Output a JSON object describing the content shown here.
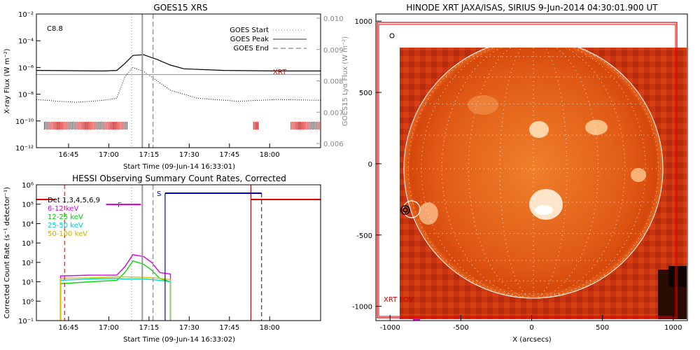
{
  "chart_data": [
    {
      "type": "line",
      "title": "GOES15 XRS",
      "xlabel": "Start Time (09-Jun-14 16:33:01)",
      "ylabel": "X-ray Flux (W m⁻²)",
      "ylabel_right": "GOES15 Lyα Flux (W m⁻²)",
      "xticks": [
        "16:45",
        "17:00",
        "17:15",
        "17:30",
        "17:45",
        "18:00"
      ],
      "yticks": [
        "10⁻¹²",
        "10⁻¹⁰",
        "10⁻⁸",
        "10⁻⁶",
        "10⁻⁴",
        "10⁻²"
      ],
      "yticks_right": [
        "0.006",
        "0.007",
        "0.008",
        "0.009",
        "0.010"
      ],
      "flare_class": "C8.8",
      "legend": [
        {
          "name": "GOES Start",
          "style": "dotted"
        },
        {
          "name": "GOES Peak",
          "style": "solid"
        },
        {
          "name": "GOES End",
          "style": "dashed"
        }
      ],
      "xrt_label": "XRT",
      "series": [
        {
          "name": "long channel",
          "color": "#000000",
          "points": [
            [
              0,
              6e-07
            ],
            [
              10,
              5.8e-07
            ],
            [
              25,
              5.5e-07
            ],
            [
              30,
              6e-07
            ],
            [
              33,
              2e-06
            ],
            [
              36,
              8e-06
            ],
            [
              40,
              9e-06
            ],
            [
              45,
              4e-06
            ],
            [
              50,
              1.5e-06
            ],
            [
              55,
              8e-07
            ],
            [
              70,
              6e-07
            ],
            [
              90,
              5.5e-07
            ],
            [
              106,
              5.5e-07
            ]
          ]
        },
        {
          "name": "short channel",
          "color": "#000000",
          "style": "dotted",
          "points": [
            [
              0,
              4e-09
            ],
            [
              8,
              3e-09
            ],
            [
              15,
              2.5e-09
            ],
            [
              25,
              3.5e-09
            ],
            [
              30,
              5e-09
            ],
            [
              33,
              2e-07
            ],
            [
              36,
              1e-06
            ],
            [
              40,
              5e-07
            ],
            [
              45,
              1e-07
            ],
            [
              50,
              2e-08
            ],
            [
              60,
              5e-09
            ],
            [
              75,
              3e-09
            ],
            [
              90,
              4e-09
            ],
            [
              106,
              3.5e-09
            ]
          ]
        },
        {
          "name": "Lyα",
          "color": "#999999",
          "points": [
            [
              0,
              0.0082
            ],
            [
              106,
              0.0082
            ]
          ]
        }
      ]
    },
    {
      "type": "line",
      "title": "HESSI Observing Summary Count Rates, Corrected",
      "xlabel": "Start Time (09-Jun-14 16:33:02)",
      "ylabel": "Corrected Count Rate (s⁻¹ detector⁻¹)",
      "xticks": [
        "16:45",
        "17:00",
        "17:15",
        "17:30",
        "17:45",
        "18:00"
      ],
      "yticks": [
        "10⁻¹",
        "10⁰",
        "10¹",
        "10²",
        "10³",
        "10⁴",
        "10⁵",
        "10⁶"
      ],
      "det_label": "Det 1,3,4,5,6,9",
      "flag_f": "F",
      "flag_s": "S",
      "series": [
        {
          "name": "6-12 keV",
          "color": "#e000e0",
          "points": [
            [
              9,
              20
            ],
            [
              20,
              22
            ],
            [
              30,
              22
            ],
            [
              33,
              60
            ],
            [
              36,
              250
            ],
            [
              40,
              200
            ],
            [
              43,
              100
            ],
            [
              46,
              30
            ],
            [
              50,
              25
            ]
          ]
        },
        {
          "name": "12-25 keV",
          "color": "#00dd00",
          "points": [
            [
              9,
              8
            ],
            [
              20,
              10
            ],
            [
              30,
              12
            ],
            [
              33,
              30
            ],
            [
              36,
              120
            ],
            [
              40,
              80
            ],
            [
              43,
              40
            ],
            [
              46,
              15
            ],
            [
              50,
              10
            ]
          ]
        },
        {
          "name": "25-50 keV",
          "color": "#00d8d8",
          "points": [
            [
              9,
              12
            ],
            [
              20,
              14
            ],
            [
              30,
              15
            ],
            [
              33,
              14
            ],
            [
              40,
              14
            ],
            [
              46,
              12
            ],
            [
              50,
              10
            ]
          ]
        },
        {
          "name": "50-100 keV",
          "color": "#d8c000",
          "points": [
            [
              9,
              15
            ],
            [
              20,
              16
            ],
            [
              30,
              18
            ],
            [
              33,
              18
            ],
            [
              40,
              17
            ],
            [
              46,
              15
            ],
            [
              50,
              13
            ]
          ]
        }
      ]
    },
    {
      "type": "heatmap",
      "title": "HINODE XRT JAXA/ISAS, SIRIUS  9-Jun-2014 04:30:01.900 UT",
      "xlabel": "X (arcsecs)",
      "ylabel": "",
      "xticks": [
        "-1000",
        "-500",
        "0",
        "500",
        "1000"
      ],
      "yticks": [
        "1000",
        "500",
        "0",
        "-500",
        "-1000"
      ],
      "xlim": [
        -1100,
        1100
      ],
      "ylim": [
        -1100,
        1050
      ],
      "fov_label": "XRT FOV",
      "disk_radius_arcsec": 945
    }
  ]
}
